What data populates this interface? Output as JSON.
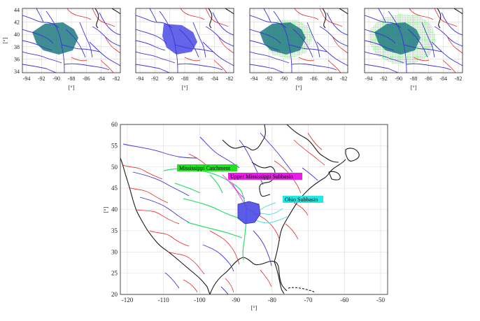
{
  "panels": [
    {
      "id": "p1",
      "fill": "#1f7a80",
      "fill_opacity": 0.85,
      "green_dots": false,
      "hull": "outer"
    },
    {
      "id": "p2",
      "fill": "#4a4ae6",
      "fill_opacity": 0.85,
      "green_dots": false,
      "hull": "upper"
    },
    {
      "id": "p3",
      "fill": "#1f7a80",
      "fill_opacity": 0.85,
      "green_dots": true,
      "hull": "outer"
    },
    {
      "id": "p4",
      "fill": "#1f7a80",
      "fill_opacity": 0.85,
      "green_dots": true,
      "hull": "outer"
    }
  ],
  "small_axes": {
    "x_ticks": [
      "-94",
      "-92",
      "-90",
      "-88",
      "-86",
      "-84",
      "-82"
    ],
    "y_ticks": [
      "44",
      "42",
      "40",
      "38",
      "36",
      "34"
    ],
    "x_unit": "[°]",
    "y_unit": "[°]"
  },
  "large_axes": {
    "x_ticks": [
      "-120",
      "-110",
      "-100",
      "-90",
      "-80",
      "-70",
      "-60",
      "-50"
    ],
    "y_ticks": [
      "60",
      "55",
      "50",
      "45",
      "40",
      "35",
      "30",
      "25",
      "20"
    ],
    "x_unit": "[°]",
    "y_unit": "[°]"
  },
  "labels": {
    "mississippi": {
      "text": "Mississippi Catchment",
      "bg": "#22e022"
    },
    "upper": {
      "text": "Upper Mississippi Subbasin",
      "bg": "#e81ee8"
    },
    "ohio": {
      "text": "Ohio Subbasin",
      "bg": "#22e8e8"
    }
  },
  "colors": {
    "river_major": "#3a34d8",
    "river_minor": "#e32a2a",
    "mississippi": "#2ee06a",
    "ohio": "#5fdede",
    "upper": "#d94cd9",
    "coast": "#1a1a1a"
  }
}
